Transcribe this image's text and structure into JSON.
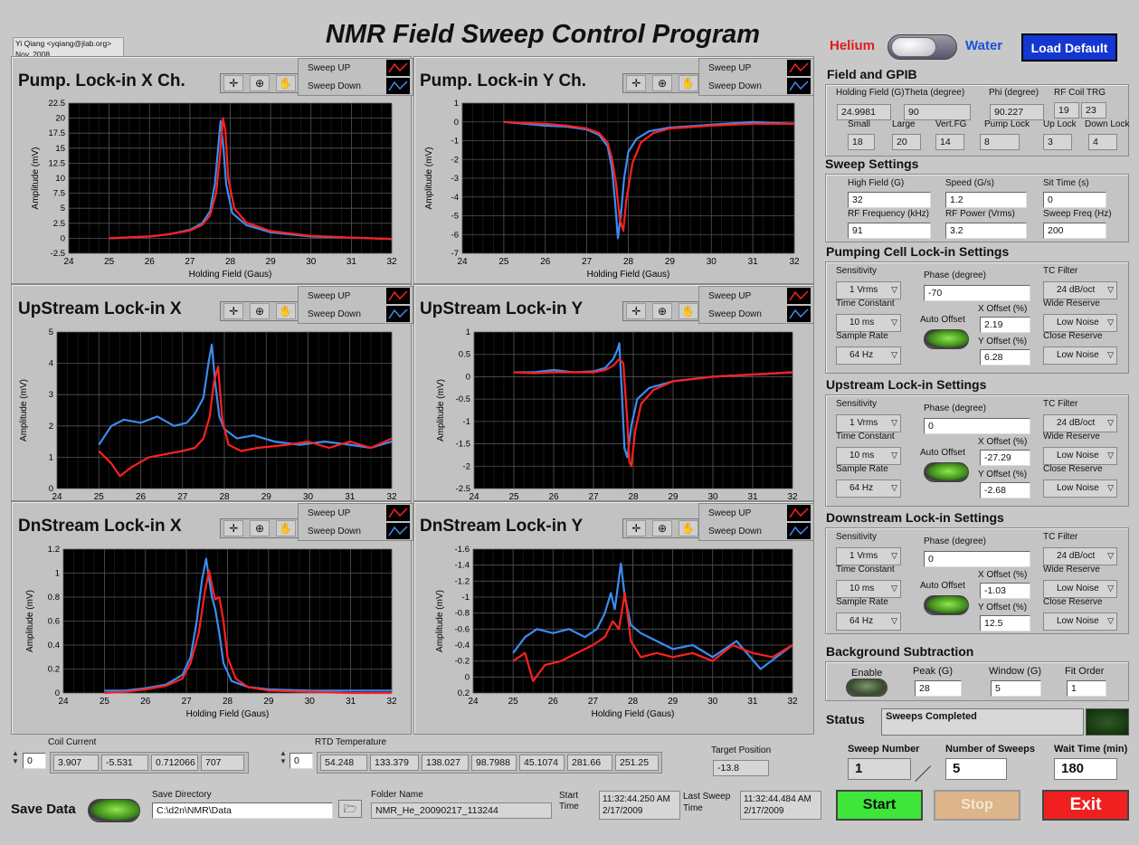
{
  "app": {
    "credit_line1": "Yi Qiang <yqiang@jlab.org>",
    "credit_line2": "Nov, 2008",
    "title": "NMR Field Sweep Control Program",
    "helium": "Helium",
    "water": "Water",
    "load_default": "Load Default"
  },
  "colors": {
    "sweep_up": "#ff2020",
    "sweep_down": "#3c8cf0",
    "plot_bg": "#000000",
    "grid": "#555555"
  },
  "legend": {
    "up": "Sweep UP",
    "down": "Sweep Down"
  },
  "graphs": [
    {
      "title": "Pump. Lock-in X Ch."
    },
    {
      "title": "Pump. Lock-in Y Ch."
    },
    {
      "title": "UpStream Lock-in X"
    },
    {
      "title": "UpStream Lock-in Y"
    },
    {
      "title": "DnStream Lock-in X"
    },
    {
      "title": "DnStream Lock-in Y"
    }
  ],
  "chart_data": [
    {
      "type": "line",
      "title": "Pump. Lock-in X Ch.",
      "xlabel": "Holding Field (Gaus)",
      "ylabel": "Amplitude (mV)",
      "xlim": [
        24,
        32
      ],
      "ylim": [
        -2.5,
        22.5
      ],
      "yticks": [
        "-2.5",
        "0",
        "2.5",
        "5",
        "7.5",
        "10",
        "12.5",
        "15",
        "17.5",
        "20",
        "22.5"
      ],
      "xticks": [
        "24",
        "25",
        "26",
        "27",
        "28",
        "29",
        "30",
        "31",
        "32"
      ],
      "series": [
        {
          "name": "Sweep UP",
          "color": "#ff2020",
          "x": [
            25,
            26,
            26.5,
            27,
            27.3,
            27.5,
            27.65,
            27.75,
            27.82,
            27.88,
            27.95,
            28.1,
            28.4,
            29,
            30,
            31,
            32
          ],
          "y": [
            0,
            0.3,
            0.7,
            1.3,
            2.2,
            3.8,
            7.5,
            14,
            20,
            18,
            10,
            5,
            2.6,
            1.2,
            0.4,
            0.1,
            -0.1
          ]
        },
        {
          "name": "Sweep Down",
          "color": "#3c8cf0",
          "x": [
            25,
            26,
            26.5,
            27,
            27.3,
            27.5,
            27.62,
            27.7,
            27.76,
            27.82,
            27.9,
            28.05,
            28.4,
            29,
            30,
            31,
            32
          ],
          "y": [
            0,
            0.3,
            0.7,
            1.4,
            2.5,
            4.5,
            9,
            15,
            19.5,
            16,
            9,
            4.2,
            2.2,
            1,
            0.3,
            0.1,
            -0.1
          ]
        }
      ]
    },
    {
      "type": "line",
      "title": "Pump. Lock-in Y Ch.",
      "xlabel": "Holding Field (Gaus)",
      "ylabel": "Amplitude (mV)",
      "xlim": [
        24,
        32
      ],
      "ylim": [
        -7,
        1
      ],
      "yticks": [
        "1",
        "0",
        "-1",
        "-2",
        "-3",
        "-4",
        "-5",
        "-6",
        "-7"
      ],
      "xticks": [
        "24",
        "25",
        "26",
        "27",
        "28",
        "29",
        "30",
        "31",
        "32"
      ],
      "series": [
        {
          "name": "Sweep UP",
          "color": "#ff2020",
          "x": [
            25,
            25.5,
            26,
            26.5,
            27,
            27.3,
            27.5,
            27.6,
            27.7,
            27.8,
            27.88,
            27.95,
            28.1,
            28.3,
            28.6,
            29,
            30,
            31,
            32
          ],
          "y": [
            0,
            -0.05,
            -0.1,
            -0.2,
            -0.35,
            -0.6,
            -1.1,
            -1.9,
            -3.2,
            -5.2,
            -5.8,
            -4.2,
            -2.2,
            -1.1,
            -0.6,
            -0.35,
            -0.2,
            -0.1,
            -0.1
          ]
        },
        {
          "name": "Sweep Down",
          "color": "#3c8cf0",
          "x": [
            25,
            25.5,
            26,
            26.5,
            27,
            27.3,
            27.5,
            27.6,
            27.68,
            27.75,
            27.82,
            27.9,
            28,
            28.2,
            28.5,
            29,
            30,
            31,
            32
          ],
          "y": [
            0,
            -0.1,
            -0.2,
            -0.25,
            -0.4,
            -0.7,
            -1.3,
            -2.4,
            -4.2,
            -6.2,
            -5,
            -3,
            -1.6,
            -0.9,
            -0.5,
            -0.3,
            -0.15,
            0,
            -0.1
          ]
        }
      ]
    },
    {
      "type": "line",
      "title": "UpStream Lock-in X",
      "xlabel": "Holding Field (Gaus)",
      "ylabel": "Amplitude (mV)",
      "xlim": [
        24,
        32
      ],
      "ylim": [
        0,
        5
      ],
      "yticks": [
        "0",
        "1",
        "2",
        "3",
        "4",
        "5"
      ],
      "xticks": [
        "24",
        "25",
        "26",
        "27",
        "28",
        "29",
        "30",
        "31",
        "32"
      ],
      "series": [
        {
          "name": "Sweep UP",
          "color": "#ff2020",
          "x": [
            25,
            25.3,
            25.5,
            25.8,
            26.2,
            26.6,
            27,
            27.3,
            27.5,
            27.65,
            27.75,
            27.85,
            27.95,
            28.1,
            28.4,
            28.8,
            29.5,
            30,
            30.5,
            31,
            31.5,
            32
          ],
          "y": [
            1.2,
            0.8,
            0.4,
            0.7,
            1,
            1.1,
            1.2,
            1.3,
            1.6,
            2.3,
            3.4,
            3.9,
            2.2,
            1.4,
            1.2,
            1.3,
            1.4,
            1.5,
            1.3,
            1.5,
            1.3,
            1.6
          ]
        },
        {
          "name": "Sweep Down",
          "color": "#3c8cf0",
          "x": [
            25,
            25.3,
            25.6,
            26,
            26.4,
            26.8,
            27.1,
            27.3,
            27.5,
            27.62,
            27.7,
            27.78,
            27.88,
            28,
            28.3,
            28.7,
            29.2,
            29.8,
            30.4,
            31,
            31.5,
            32
          ],
          "y": [
            1.4,
            2,
            2.2,
            2.1,
            2.3,
            2,
            2.1,
            2.4,
            2.9,
            4,
            4.6,
            3.4,
            2.3,
            1.9,
            1.6,
            1.7,
            1.5,
            1.4,
            1.5,
            1.4,
            1.3,
            1.5
          ]
        }
      ]
    },
    {
      "type": "line",
      "title": "UpStream Lock-in Y",
      "xlabel": "Holding Field (Gaus)",
      "ylabel": "Amplitude (mV)",
      "xlim": [
        24,
        32
      ],
      "ylim": [
        -2.5,
        1
      ],
      "yticks": [
        "1",
        "0.5",
        "0",
        "-0.5",
        "-1",
        "-1.5",
        "-2",
        "-2.5"
      ],
      "xticks": [
        "24",
        "25",
        "26",
        "27",
        "28",
        "29",
        "30",
        "31",
        "32"
      ],
      "series": [
        {
          "name": "Sweep UP",
          "color": "#ff2020",
          "x": [
            25,
            25.5,
            26,
            26.5,
            27,
            27.3,
            27.5,
            27.65,
            27.75,
            27.85,
            27.9,
            27.95,
            28.05,
            28.2,
            28.5,
            29,
            30,
            31,
            32
          ],
          "y": [
            0.1,
            0.08,
            0.1,
            0.1,
            0.1,
            0.15,
            0.25,
            0.4,
            0.3,
            -1,
            -1.9,
            -2,
            -1.2,
            -0.6,
            -0.3,
            -0.1,
            0,
            0.05,
            0.1
          ]
        },
        {
          "name": "Sweep Down",
          "color": "#3c8cf0",
          "x": [
            25,
            25.5,
            26,
            26.5,
            27,
            27.3,
            27.5,
            27.6,
            27.65,
            27.72,
            27.78,
            27.85,
            27.95,
            28.1,
            28.4,
            29,
            30,
            31,
            32
          ],
          "y": [
            0.1,
            0.1,
            0.15,
            0.1,
            0.12,
            0.2,
            0.4,
            0.6,
            0.75,
            -0.5,
            -1.6,
            -1.8,
            -1.1,
            -0.5,
            -0.25,
            -0.1,
            0,
            0.05,
            0.1
          ]
        }
      ]
    },
    {
      "type": "line",
      "title": "DnStream Lock-in X",
      "xlabel": "Holding Field (Gaus)",
      "ylabel": "Amplitude (mV)",
      "xlim": [
        24,
        32
      ],
      "ylim": [
        0,
        1.2
      ],
      "yticks": [
        "0",
        "0.2",
        "0.4",
        "0.6",
        "0.8",
        "1",
        "1.2"
      ],
      "xticks": [
        "24",
        "25",
        "26",
        "27",
        "28",
        "29",
        "30",
        "31",
        "32"
      ],
      "series": [
        {
          "name": "Sweep UP",
          "color": "#ff2020",
          "x": [
            25,
            25.5,
            26,
            26.5,
            26.9,
            27.1,
            27.3,
            27.45,
            27.55,
            27.62,
            27.7,
            27.8,
            27.9,
            28,
            28.2,
            28.5,
            29,
            30,
            31,
            32
          ],
          "y": [
            0,
            0.01,
            0.03,
            0.06,
            0.12,
            0.25,
            0.5,
            0.85,
            1.02,
            0.9,
            0.78,
            0.8,
            0.6,
            0.3,
            0.12,
            0.05,
            0.02,
            0.01,
            0,
            0
          ]
        },
        {
          "name": "Sweep Down",
          "color": "#3c8cf0",
          "x": [
            25,
            25.5,
            26,
            26.5,
            26.9,
            27.1,
            27.25,
            27.38,
            27.48,
            27.55,
            27.62,
            27.7,
            27.8,
            27.9,
            28.1,
            28.5,
            29,
            30,
            31,
            32
          ],
          "y": [
            0.02,
            0.02,
            0.04,
            0.07,
            0.15,
            0.3,
            0.6,
            0.95,
            1.12,
            0.95,
            0.8,
            0.7,
            0.5,
            0.25,
            0.1,
            0.05,
            0.03,
            0.02,
            0.02,
            0.02
          ]
        }
      ]
    },
    {
      "type": "line",
      "title": "DnStream Lock-in Y",
      "xlabel": "Holding Field (Gaus)",
      "ylabel": "Amplitude (mV)",
      "xlim": [
        24,
        32
      ],
      "ylim": [
        -1.6,
        0.2
      ],
      "yticks": [
        "-1.6",
        "-1.4",
        "-1.2",
        "-1",
        "-0.8",
        "-0.6",
        "-0.4",
        "-0.2",
        "0",
        "0.2"
      ],
      "xticks": [
        "24",
        "25",
        "26",
        "27",
        "28",
        "29",
        "30",
        "31",
        "32"
      ],
      "series": [
        {
          "name": "Sweep UP",
          "color": "#ff2020",
          "x": [
            25,
            25.3,
            25.5,
            25.8,
            26.2,
            26.6,
            27,
            27.3,
            27.5,
            27.65,
            27.8,
            27.95,
            28.2,
            28.6,
            29,
            29.5,
            30,
            30.5,
            31,
            31.5,
            32
          ],
          "y": [
            -0.2,
            -0.3,
            0.05,
            -0.15,
            -0.2,
            -0.3,
            -0.4,
            -0.5,
            -0.7,
            -0.6,
            -1.05,
            -0.45,
            -0.25,
            -0.3,
            -0.25,
            -0.3,
            -0.2,
            -0.4,
            -0.3,
            -0.25,
            -0.4
          ]
        },
        {
          "name": "Sweep Down",
          "color": "#3c8cf0",
          "x": [
            25,
            25.3,
            25.6,
            26,
            26.4,
            26.8,
            27.1,
            27.3,
            27.45,
            27.55,
            27.7,
            27.8,
            27.95,
            28.2,
            28.6,
            29,
            29.5,
            30,
            30.6,
            31.2,
            32
          ],
          "y": [
            -0.3,
            -0.5,
            -0.6,
            -0.55,
            -0.6,
            -0.5,
            -0.6,
            -0.8,
            -1.05,
            -0.85,
            -1.42,
            -1,
            -0.65,
            -0.55,
            -0.45,
            -0.35,
            -0.4,
            -0.25,
            -0.45,
            -0.1,
            -0.4
          ]
        }
      ]
    }
  ],
  "field_gpib": {
    "header": "Field and GPIB",
    "holding_field_label": "Holding Field (G)",
    "holding_field": "24.9981",
    "theta_label": "Theta (degree)",
    "theta": "90",
    "phi_label": "Phi (degree)",
    "phi": "90.227",
    "rf_coil_label": "RF Coil TRG",
    "rf_coil_1": "19",
    "rf_coil_2": "23",
    "small_label": "Small",
    "small": "18",
    "large_label": "Large",
    "large": "20",
    "vertfg_label": "Vert.FG",
    "vertfg": "14",
    "pumplock_label": "Pump Lock",
    "pumplock": "8",
    "uplock_label": "Up Lock",
    "uplock": "3",
    "downlock_label": "Down Lock",
    "downlock": "4"
  },
  "sweep": {
    "header": "Sweep Settings",
    "high_field_label": "High Field (G)",
    "high_field": "32",
    "speed_label": "Speed (G/s)",
    "speed": "1.2",
    "sit_time_label": "Sit Time (s)",
    "sit_time": "0",
    "rf_freq_label": "RF Frequency (kHz)",
    "rf_freq": "91",
    "rf_power_label": "RF Power (Vrms)",
    "rf_power": "3.2",
    "sweep_freq_label": "Sweep Freq (Hz)",
    "sweep_freq": "200"
  },
  "lockins": [
    {
      "header": "Pumping Cell Lock-in Settings",
      "sensitivity": "1 Vrms",
      "phase": "-70",
      "tc_filter": "24 dB/oct",
      "time_constant": "10 ms",
      "wide_reserve": "Low Noise",
      "x_offset": "2.19",
      "sample_rate": "64 Hz",
      "close_reserve": "Low Noise",
      "y_offset": "6.28"
    },
    {
      "header": "Upstream Lock-in Settings",
      "sensitivity": "1 Vrms",
      "phase": "0",
      "tc_filter": "24 dB/oct",
      "time_constant": "10 ms",
      "wide_reserve": "Low Noise",
      "x_offset": "-27.29",
      "sample_rate": "64 Hz",
      "close_reserve": "Low Noise",
      "y_offset": "-2.68"
    },
    {
      "header": "Downstream Lock-in Settings",
      "sensitivity": "1 Vrms",
      "phase": "0",
      "tc_filter": "24 dB/oct",
      "time_constant": "10 ms",
      "wide_reserve": "Low Noise",
      "x_offset": "-1.03",
      "sample_rate": "64 Hz",
      "close_reserve": "Low Noise",
      "y_offset": "12.5"
    }
  ],
  "lockin_labels": {
    "sensitivity": "Sensitivity",
    "phase": "Phase (degree)",
    "tc_filter": "TC Filter",
    "time_constant": "Time Constant",
    "auto_offset": "Auto Offset",
    "x_offset": "X Offset (%)",
    "wide_reserve": "Wide Reserve",
    "sample_rate": "Sample Rate",
    "y_offset": "Y Offset (%)",
    "close_reserve": "Close Reserve"
  },
  "background": {
    "header": "Background Subtraction",
    "enable_label": "Enable",
    "peak_label": "Peak (G)",
    "peak": "28",
    "window_label": "Window (G)",
    "window": "5",
    "fit_order_label": "Fit Order",
    "fit_order": "1"
  },
  "status": {
    "label": "Status",
    "text": "Sweeps Completed"
  },
  "sweep_control": {
    "sweep_number_label": "Sweep Number",
    "sweep_number": "1",
    "num_sweeps_label": "Number of Sweeps",
    "num_sweeps": "5",
    "wait_time_label": "Wait Time (min)",
    "wait_time": "180",
    "start": "Start",
    "stop": "Stop",
    "exit": "Exit"
  },
  "coil": {
    "label": "Coil Current",
    "index": "0",
    "values": [
      "3.907",
      "-5.531",
      "0.712066",
      "707"
    ]
  },
  "rtd": {
    "label": "RTD Temperature",
    "index": "0",
    "values": [
      "54.248",
      "133.379",
      "138.027",
      "98.7988",
      "45.1074",
      "281.66",
      "251.25"
    ]
  },
  "target": {
    "label": "Target Position",
    "value": "-13.8"
  },
  "save": {
    "label": "Save Data",
    "dir_label": "Save Directory",
    "dir": "C:\\d2n\\NMR\\Data",
    "folder_label": "Folder Name",
    "folder": "NMR_He_20090217_113244",
    "start_time_label": "Start Time",
    "start_time_1": "11:32:44.250 AM",
    "start_time_2": "2/17/2009",
    "last_time_label": "Last Sweep Time",
    "last_time_1": "11:32:44.484 AM",
    "last_time_2": "2/17/2009"
  }
}
